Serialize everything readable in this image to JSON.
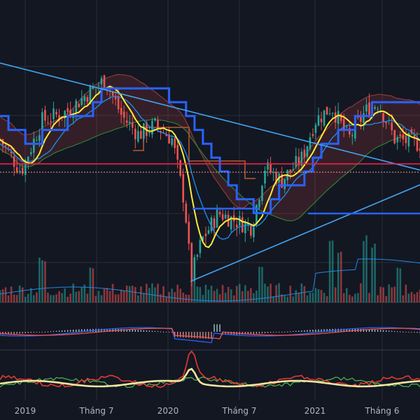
{
  "chart_data": {
    "type": "candlestick",
    "title": "",
    "x_tick_labels": [
      {
        "label": "2019",
        "t": 0.06
      },
      {
        "label": "Tháng 7",
        "t": 0.23
      },
      {
        "label": "2020",
        "t": 0.4
      },
      {
        "label": "Tháng 7",
        "t": 0.57
      },
      {
        "label": "2021",
        "t": 0.75
      },
      {
        "label": "Tháng 6",
        "t": 0.91
      }
    ],
    "grid": true,
    "panels": [
      "price",
      "volume",
      "macd",
      "oscillator"
    ],
    "price_key_points": [
      {
        "t": 0.0,
        "p": 62
      },
      {
        "t": 0.05,
        "p": 55
      },
      {
        "t": 0.1,
        "p": 66
      },
      {
        "t": 0.16,
        "p": 68
      },
      {
        "t": 0.21,
        "p": 72
      },
      {
        "t": 0.25,
        "p": 75
      },
      {
        "t": 0.29,
        "p": 67
      },
      {
        "t": 0.33,
        "p": 63
      },
      {
        "t": 0.37,
        "p": 65
      },
      {
        "t": 0.41,
        "p": 62
      },
      {
        "t": 0.44,
        "p": 48
      },
      {
        "t": 0.455,
        "p": 32
      },
      {
        "t": 0.48,
        "p": 40
      },
      {
        "t": 0.52,
        "p": 46
      },
      {
        "t": 0.57,
        "p": 44
      },
      {
        "t": 0.6,
        "p": 43
      },
      {
        "t": 0.63,
        "p": 56
      },
      {
        "t": 0.67,
        "p": 53
      },
      {
        "t": 0.72,
        "p": 58
      },
      {
        "t": 0.75,
        "p": 66
      },
      {
        "t": 0.79,
        "p": 69
      },
      {
        "t": 0.83,
        "p": 62
      },
      {
        "t": 0.87,
        "p": 68
      },
      {
        "t": 0.9,
        "p": 70
      },
      {
        "t": 0.94,
        "p": 62
      },
      {
        "t": 1.0,
        "p": 61
      }
    ],
    "volume_spikes": [
      {
        "t": 0.1,
        "v": 0.65
      },
      {
        "t": 0.22,
        "v": 0.5
      },
      {
        "t": 0.46,
        "v": 0.45
      },
      {
        "t": 0.62,
        "v": 0.55
      },
      {
        "t": 0.79,
        "v": 0.95
      },
      {
        "t": 0.81,
        "v": 0.8
      },
      {
        "t": 0.87,
        "v": 1.0
      },
      {
        "t": 0.89,
        "v": 0.85
      },
      {
        "t": 0.95,
        "v": 0.55
      }
    ],
    "colors": {
      "up": "#26a69a",
      "down": "#ef5350",
      "background": "#131722",
      "grid": "#2a2e39",
      "trendline": "#42a5f5",
      "ma_yellow": "#ffeb3b",
      "ma_blue": "#2962ff",
      "cloud_red": "#ef5350",
      "cloud_green": "#66bb6a",
      "resistance": "#ff1744",
      "macd": "#2962ff",
      "signal": "#ef5350",
      "osc_cream": "#f0e6a0",
      "osc_red": "#e53935",
      "osc_green": "#4caf50",
      "tick_text": "#b2b5be"
    }
  }
}
